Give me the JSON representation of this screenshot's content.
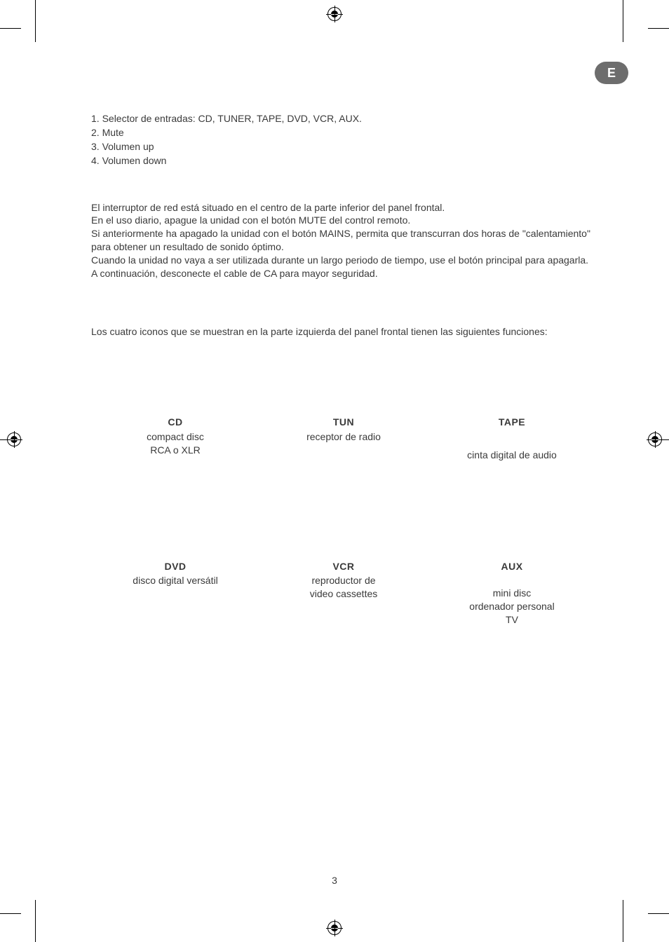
{
  "badge": "E",
  "list": {
    "item1": "1. Selector de entradas: CD, TUNER, TAPE, DVD, VCR, AUX.",
    "item2": "2. Mute",
    "item3": "3. Volumen up",
    "item4": "4. Volumen down"
  },
  "para": {
    "l1": "El interruptor de red está situado en el centro de la parte inferior del panel frontal.",
    "l2": "En el uso diario, apague la unidad con el botón MUTE del control remoto.",
    "l3": "Si anteriormente ha apagado la unidad con el botón MAINS, permita que transcurran dos horas de \"calentamiento\" para obtener un resultado de sonido óptimo.",
    "l4": "Cuando la unidad no vaya a ser utilizada durante un largo periodo de tiempo, use el botón principal para apagarla.",
    "l5": "A continuación, desconecte el cable de CA para mayor seguridad."
  },
  "intro": "Los cuatro iconos que se muestran en la parte izquierda del panel frontal tienen las siguientes funciones:",
  "icons": {
    "cd": {
      "title": "CD",
      "l1": "compact disc",
      "l2": "RCA o XLR"
    },
    "tun": {
      "title": "TUN",
      "l1": "receptor de radio"
    },
    "tape": {
      "title": "TAPE",
      "l1": "cinta digital de audio"
    },
    "dvd": {
      "title": "DVD",
      "l1": "disco digital versátil"
    },
    "vcr": {
      "title": "VCR",
      "l1": "reproductor de",
      "l2": "video cassettes"
    },
    "aux": {
      "title": "AUX",
      "l1": "mini disc",
      "l2": "ordenador personal",
      "l3": "TV"
    }
  },
  "page_number": "3"
}
